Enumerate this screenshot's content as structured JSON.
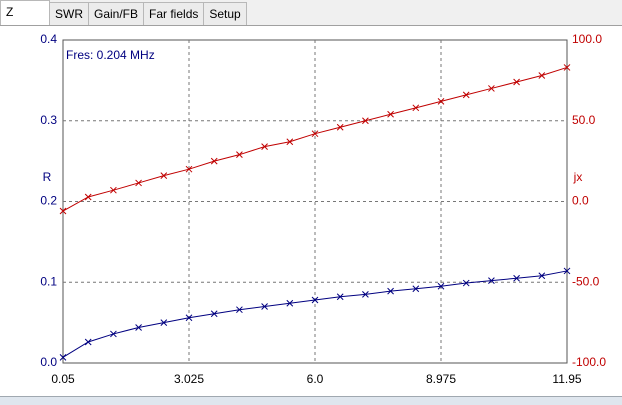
{
  "tabs": [
    "Z",
    "SWR",
    "Gain/FB",
    "Far fields",
    "Setup"
  ],
  "chart_data": {
    "type": "line",
    "annotation": "Fres: 0.204 MHz",
    "y_label": "R",
    "y2_label": "jx",
    "x": [
      0.05,
      0.645,
      1.24,
      1.835,
      2.43,
      3.025,
      3.62,
      4.215,
      4.81,
      5.405,
      6.0,
      6.595,
      7.19,
      7.785,
      8.38,
      8.975,
      9.57,
      10.165,
      10.76,
      11.355,
      11.95
    ],
    "series": [
      {
        "name": "R",
        "color": "#000080",
        "values": [
          0.007,
          0.026,
          0.036,
          0.044,
          0.05,
          0.056,
          0.061,
          0.066,
          0.07,
          0.074,
          0.078,
          0.082,
          0.085,
          0.089,
          0.092,
          0.095,
          0.099,
          0.102,
          0.105,
          0.108,
          0.114
        ]
      },
      {
        "name": "jx",
        "color": "#c00000",
        "axis": "y2",
        "values": [
          -5.9,
          2.8,
          7,
          11.5,
          16,
          20,
          25,
          29,
          34,
          37,
          42,
          46,
          50,
          54,
          58,
          62,
          66,
          70,
          74,
          78,
          83
        ]
      }
    ],
    "xlim": [
      0.05,
      11.95
    ],
    "xticks": [
      0.05,
      3.025,
      {
        "value": 6,
        "label": "6.0"
      },
      8.975,
      11.95
    ],
    "ylim": [
      0,
      0.4
    ],
    "yticks": [
      {
        "value": 0,
        "label": "0.0"
      },
      0.1,
      0.2,
      0.3,
      0.4
    ],
    "y2lim": [
      -100,
      100
    ],
    "y2ticks": [
      {
        "value": -100,
        "label": "-100.0"
      },
      {
        "value": -50,
        "label": "-50.0"
      },
      {
        "value": 0,
        "label": "0.0"
      },
      {
        "value": 50,
        "label": "50.0"
      },
      {
        "value": 100,
        "label": "100.0"
      }
    ],
    "grid": true
  }
}
